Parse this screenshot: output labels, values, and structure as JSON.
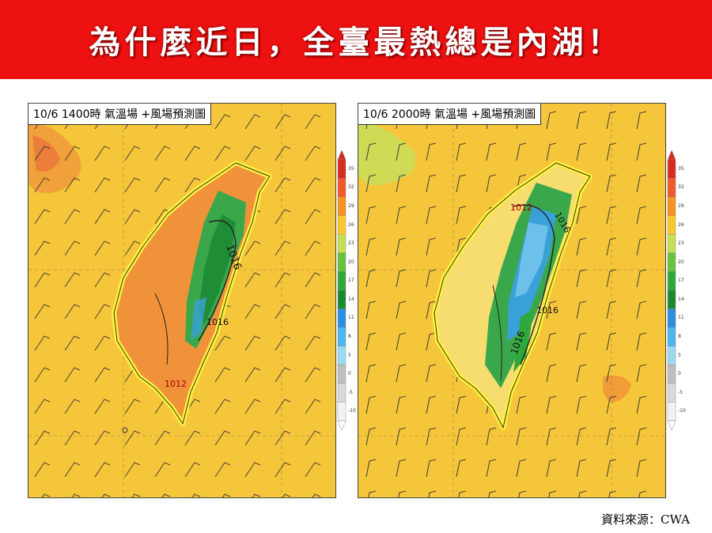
{
  "banner": {
    "title": "為什麼近日，全臺最熱總是內湖！"
  },
  "panels": [
    {
      "label": "10/6 1400時 氣溫場 +風場預測圖",
      "isobar_labels": [
        "1016",
        "1016",
        "1012"
      ]
    },
    {
      "label": "10/6 2000時 氣溫場 +風場預測圖",
      "isobar_labels": [
        "1012",
        "1016",
        "1016",
        "1016"
      ]
    }
  ],
  "colorbar": {
    "ticks": [
      "35",
      "32",
      "29",
      "26",
      "23",
      "20",
      "17",
      "14",
      "11",
      "8",
      "5",
      "0",
      "-5",
      "-10"
    ],
    "colors": [
      "#d62b1f",
      "#f05a2a",
      "#f7931e",
      "#fcc72e",
      "#c3e055",
      "#66c43c",
      "#2ea83a",
      "#1b8a2e",
      "#2b8fe0",
      "#4cb6ef",
      "#9bd9f3",
      "#bfbfbf",
      "#d9d9d9",
      "#f2f2f2"
    ]
  },
  "source": {
    "text": "資料來源：CWA"
  }
}
